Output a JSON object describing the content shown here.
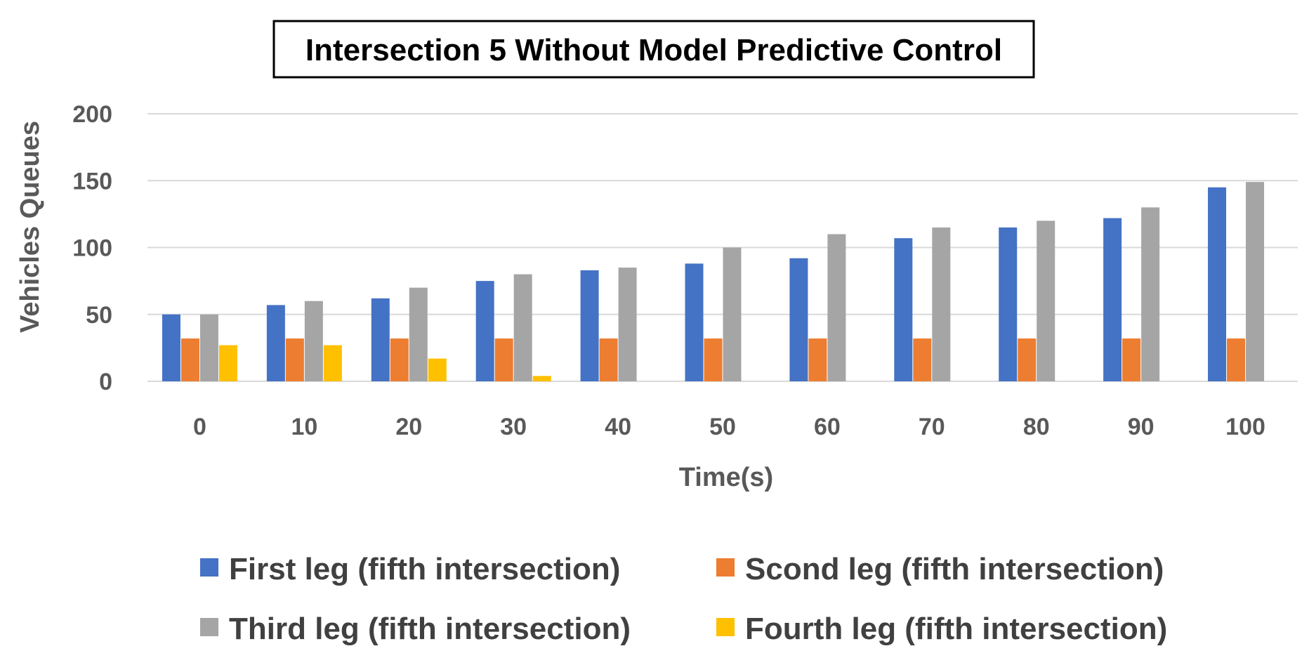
{
  "chart_data": {
    "type": "bar",
    "title": "Intersection 5 Without Model Predictive Control",
    "xlabel": "Time(s)",
    "ylabel": "Vehicles Queues",
    "ylim": [
      0,
      200
    ],
    "yticks": [
      "0",
      "50",
      "100",
      "150",
      "200"
    ],
    "grid": true,
    "legend_position": "bottom",
    "categories": [
      "0",
      "10",
      "20",
      "30",
      "40",
      "50",
      "60",
      "70",
      "80",
      "90",
      "100"
    ],
    "series": [
      {
        "name": "First leg (fifth  intersection)",
        "color": "#4472C4",
        "values": [
          50,
          57,
          62,
          75,
          83,
          88,
          92,
          107,
          115,
          122,
          145
        ]
      },
      {
        "name": "Scond leg (fifth  intersection)",
        "color": "#ED7D31",
        "values": [
          32,
          32,
          32,
          32,
          32,
          32,
          32,
          32,
          32,
          32,
          32
        ]
      },
      {
        "name": "Third leg (fifth  intersection)",
        "color": "#A5A5A5",
        "values": [
          50,
          60,
          70,
          80,
          85,
          100,
          110,
          115,
          120,
          130,
          149
        ]
      },
      {
        "name": "Fourth leg (fifth  intersection)",
        "color": "#FFC000",
        "values": [
          27,
          27,
          17,
          4,
          0,
          0,
          0,
          0,
          0,
          0,
          0
        ]
      }
    ]
  }
}
